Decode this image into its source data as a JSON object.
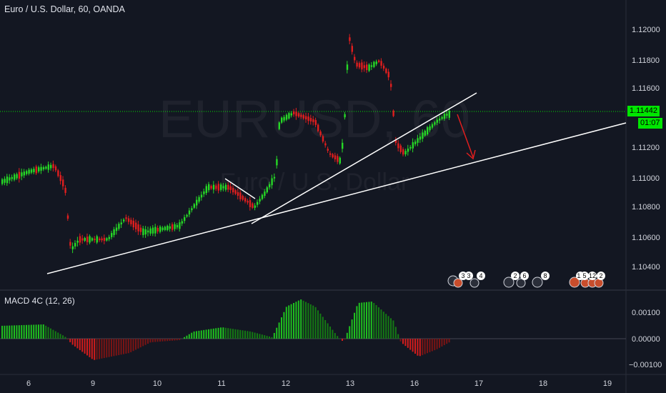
{
  "header": {
    "title": "Euro / U.S. Dollar, 60, OANDA"
  },
  "watermark": {
    "symbol": "EURUSD, 60",
    "description": "Euro / U.S. Dollar"
  },
  "price_axis": {
    "ticks": [
      "1.12000",
      "1.11800",
      "1.11600",
      "1.11200",
      "1.11000",
      "1.10800",
      "1.10600",
      "1.10400"
    ],
    "last_price": "1.11442",
    "countdown": "01:07"
  },
  "macd": {
    "label": "MACD 4C (12, 26)",
    "ticks": [
      "0.00100",
      "0.00000",
      "−0.00100"
    ]
  },
  "time_axis": {
    "ticks": [
      "6",
      "9",
      "10",
      "11",
      "12",
      "13",
      "16",
      "17",
      "18",
      "19"
    ]
  },
  "events": [
    "3",
    "3",
    "4",
    "2",
    "6",
    "8",
    "11",
    "5",
    "12",
    "2"
  ],
  "colors": {
    "up": "#26d926",
    "down": "#e01e1e",
    "background": "#131722",
    "price_line": "#00e600"
  }
}
